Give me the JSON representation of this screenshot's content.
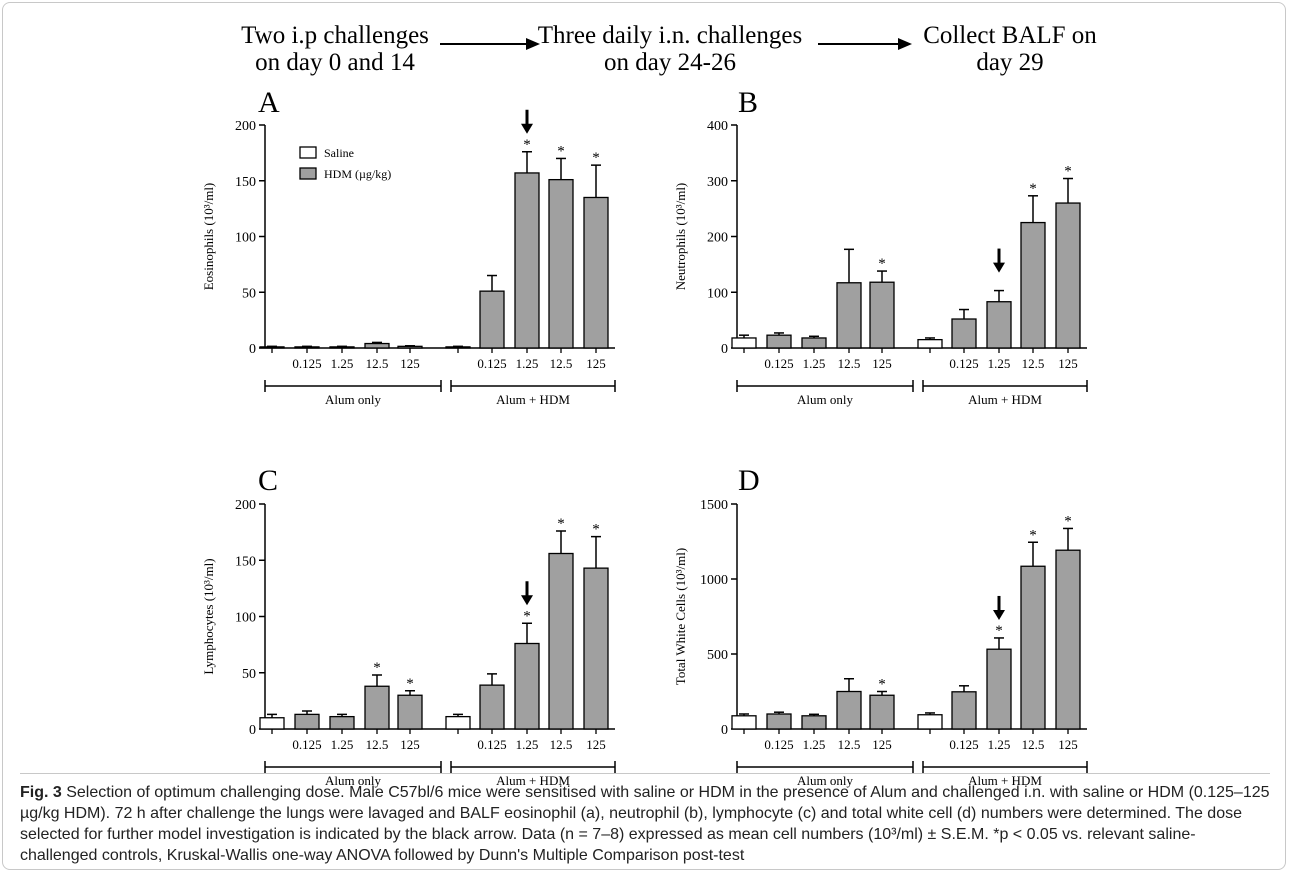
{
  "flow": {
    "step1": [
      "Two i.p challenges",
      "on day 0 and 14"
    ],
    "step2": [
      "Three daily i.n. challenges",
      "on day 24-26"
    ],
    "step3": [
      "Collect BALF on",
      "day 29"
    ]
  },
  "legend": {
    "saline": "Saline",
    "hdm": "HDM (µg/kg)"
  },
  "colors": {
    "saline_fill": "#ffffff",
    "hdm_fill": "#a0a0a0",
    "stroke": "#000000"
  },
  "chart_data": [
    {
      "panel": "A",
      "type": "bar",
      "ylabel": "Eosinophils (10³/ml)",
      "ylim": [
        0,
        200
      ],
      "yticks": [
        0,
        50,
        100,
        150,
        200
      ],
      "categories": [
        "",
        "0.125",
        "1.25",
        "12.5",
        "125",
        "",
        "0.125",
        "1.25",
        "12.5",
        "125"
      ],
      "groups": [
        "Alum only",
        "Alum + HDM"
      ],
      "fills": [
        "saline",
        "hdm",
        "hdm",
        "hdm",
        "hdm",
        "saline",
        "hdm",
        "hdm",
        "hdm",
        "hdm"
      ],
      "values": [
        1,
        1,
        1,
        4,
        1.5,
        1,
        51,
        157,
        151,
        135
      ],
      "errors": [
        0.5,
        0.5,
        0.5,
        1,
        0.5,
        0.5,
        14,
        19,
        19,
        29
      ],
      "significant": [
        false,
        false,
        false,
        false,
        false,
        false,
        false,
        true,
        true,
        true
      ],
      "arrow_index": 7
    },
    {
      "panel": "B",
      "type": "bar",
      "ylabel": "Neutrophils (10³/ml)",
      "ylim": [
        0,
        400
      ],
      "yticks": [
        0,
        100,
        200,
        300,
        400
      ],
      "categories": [
        "",
        "0.125",
        "1.25",
        "12.5",
        "125",
        "",
        "0.125",
        "1.25",
        "12.5",
        "125"
      ],
      "groups": [
        "Alum only",
        "Alum + HDM"
      ],
      "fills": [
        "saline",
        "hdm",
        "hdm",
        "hdm",
        "hdm",
        "saline",
        "hdm",
        "hdm",
        "hdm",
        "hdm"
      ],
      "values": [
        18,
        23,
        18,
        117,
        118,
        15,
        52,
        83,
        225,
        260
      ],
      "errors": [
        5,
        4,
        3,
        60,
        20,
        3,
        17,
        20,
        48,
        44
      ],
      "significant": [
        false,
        false,
        false,
        false,
        true,
        false,
        false,
        false,
        true,
        true
      ],
      "arrow_index": 7
    },
    {
      "panel": "C",
      "type": "bar",
      "ylabel": "Lymphocytes (10³/ml)",
      "ylim": [
        0,
        200
      ],
      "yticks": [
        0,
        50,
        100,
        150,
        200
      ],
      "categories": [
        "",
        "0.125",
        "1.25",
        "12.5",
        "125",
        "",
        "0.125",
        "1.25",
        "12.5",
        "125"
      ],
      "groups": [
        "Alum only",
        "Alum + HDM"
      ],
      "fills": [
        "saline",
        "hdm",
        "hdm",
        "hdm",
        "hdm",
        "saline",
        "hdm",
        "hdm",
        "hdm",
        "hdm"
      ],
      "values": [
        10,
        13,
        11,
        38,
        30,
        11,
        39,
        76,
        156,
        143
      ],
      "errors": [
        3,
        3,
        2,
        10,
        4,
        2,
        10,
        18,
        20,
        28
      ],
      "significant": [
        false,
        false,
        false,
        true,
        true,
        false,
        false,
        true,
        true,
        true
      ],
      "arrow_index": 7
    },
    {
      "panel": "D",
      "type": "bar",
      "ylabel": "Total White Cells (10³/ml)",
      "ylim": [
        0,
        1500
      ],
      "yticks": [
        0,
        500,
        1000,
        1500
      ],
      "categories": [
        "",
        "0.125",
        "1.25",
        "12.5",
        "125",
        "",
        "0.125",
        "1.25",
        "12.5",
        "125"
      ],
      "groups": [
        "Alum only",
        "Alum + HDM"
      ],
      "fills": [
        "saline",
        "hdm",
        "hdm",
        "hdm",
        "hdm",
        "saline",
        "hdm",
        "hdm",
        "hdm",
        "hdm"
      ],
      "values": [
        88,
        100,
        88,
        250,
        225,
        95,
        248,
        532,
        1085,
        1192
      ],
      "errors": [
        12,
        12,
        10,
        85,
        25,
        12,
        40,
        75,
        160,
        145
      ],
      "significant": [
        false,
        false,
        false,
        false,
        true,
        false,
        false,
        true,
        true,
        true
      ],
      "arrow_index": 7
    }
  ],
  "caption": {
    "label": "Fig. 3",
    "text": " Selection of optimum challenging dose. Male C57bl/6 mice were sensitised with saline or HDM in the presence of Alum and challenged i.n. with saline or HDM (0.125–125 µg/kg HDM). 72 h after challenge the lungs were lavaged and BALF eosinophil (a), neutrophil (b), lymphocyte (c) and total white cell (d) numbers were determined. The dose selected for further model investigation is indicated by the black arrow. Data (n = 7–8) expressed as mean cell numbers (10³/ml) ± S.E.M. *p < 0.05 vs. relevant saline-challenged controls, Kruskal-Wallis one-way ANOVA followed by Dunn's Multiple Comparison post-test"
  }
}
